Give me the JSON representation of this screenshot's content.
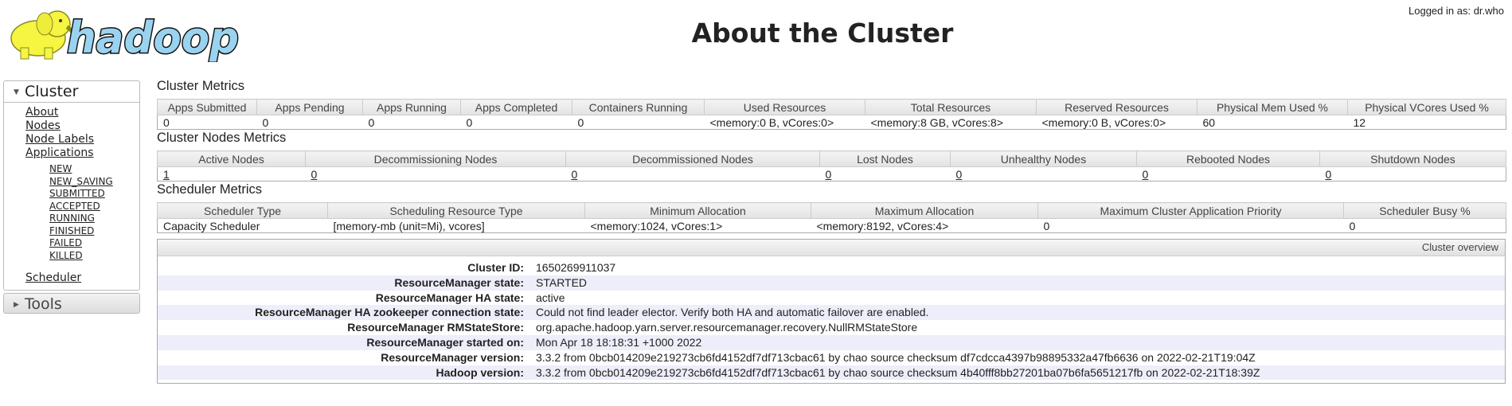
{
  "logo_text": "hadoop",
  "header": {
    "title": "About the Cluster",
    "logged_in": "Logged in as: dr.who"
  },
  "sidebar": {
    "cluster": {
      "label": "Cluster",
      "links": [
        "About",
        "Nodes",
        "Node Labels",
        "Applications"
      ],
      "app_states": [
        "NEW",
        "NEW_SAVING",
        "SUBMITTED",
        "ACCEPTED",
        "RUNNING",
        "FINISHED",
        "FAILED",
        "KILLED"
      ],
      "scheduler": "Scheduler"
    },
    "tools": {
      "label": "Tools"
    }
  },
  "cluster_metrics": {
    "title": "Cluster Metrics",
    "headers": [
      "Apps Submitted",
      "Apps Pending",
      "Apps Running",
      "Apps Completed",
      "Containers Running",
      "Used Resources",
      "Total Resources",
      "Reserved Resources",
      "Physical Mem Used %",
      "Physical VCores Used %"
    ],
    "values": [
      "0",
      "0",
      "0",
      "0",
      "0",
      "<memory:0 B, vCores:0>",
      "<memory:8 GB, vCores:8>",
      "<memory:0 B, vCores:0>",
      "60",
      "12"
    ]
  },
  "nodes_metrics": {
    "title": "Cluster Nodes Metrics",
    "headers": [
      "Active Nodes",
      "Decommissioning Nodes",
      "Decommissioned Nodes",
      "Lost Nodes",
      "Unhealthy Nodes",
      "Rebooted Nodes",
      "Shutdown Nodes"
    ],
    "values": [
      "1",
      "0",
      "0",
      "0",
      "0",
      "0",
      "0"
    ]
  },
  "scheduler_metrics": {
    "title": "Scheduler Metrics",
    "headers": [
      "Scheduler Type",
      "Scheduling Resource Type",
      "Minimum Allocation",
      "Maximum Allocation",
      "Maximum Cluster Application Priority",
      "Scheduler Busy %"
    ],
    "values": [
      "Capacity Scheduler",
      "[memory-mb (unit=Mi), vcores]",
      "<memory:1024, vCores:1>",
      "<memory:8192, vCores:4>",
      "0",
      "0"
    ]
  },
  "overview": {
    "title": "Cluster overview",
    "rows": [
      {
        "label": "Cluster ID:",
        "value": "1650269911037"
      },
      {
        "label": "ResourceManager state:",
        "value": "STARTED"
      },
      {
        "label": "ResourceManager HA state:",
        "value": "active"
      },
      {
        "label": "ResourceManager HA zookeeper connection state:",
        "value": "Could not find leader elector. Verify both HA and automatic failover are enabled."
      },
      {
        "label": "ResourceManager RMStateStore:",
        "value": "org.apache.hadoop.yarn.server.resourcemanager.recovery.NullRMStateStore"
      },
      {
        "label": "ResourceManager started on:",
        "value": "Mon Apr 18 18:18:31 +1000 2022"
      },
      {
        "label": "ResourceManager version:",
        "value": "3.3.2 from 0bcb014209e219273cb6fd4152df7df713cbac61 by chao source checksum df7cdcca4397b98895332a47fb6636 on 2022-02-21T19:04Z"
      },
      {
        "label": "Hadoop version:",
        "value": "3.3.2 from 0bcb014209e219273cb6fd4152df7df713cbac61 by chao source checksum 4b40fff8bb27201ba07b6fa5651217fb on 2022-02-21T18:39Z"
      }
    ]
  }
}
